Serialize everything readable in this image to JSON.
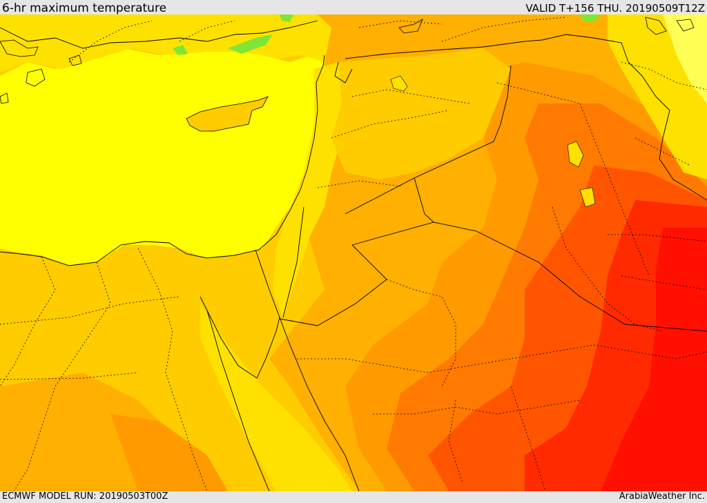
{
  "header": {
    "title": "6-hr maximum temperature",
    "valid_time": "VALID T+156 THU. 20190509T12Z"
  },
  "footer": {
    "model_run": "ECMWF MODEL RUN: 20190503T00Z",
    "credit": "ArabiaWeather Inc."
  },
  "map": {
    "region": "Eastern Mediterranean / Middle East",
    "fill_colors": {
      "green": "#7fe633",
      "light_yellow": "#ffff00",
      "yellow": "#ffe100",
      "gold": "#ffcc00",
      "light_orange": "#ffb000",
      "orange": "#ff9a00",
      "dark_orange": "#ff7a00",
      "red_orange": "#ff5500",
      "red": "#ff2a00",
      "deep_red": "#ff1000"
    },
    "border_color": "#000000"
  }
}
